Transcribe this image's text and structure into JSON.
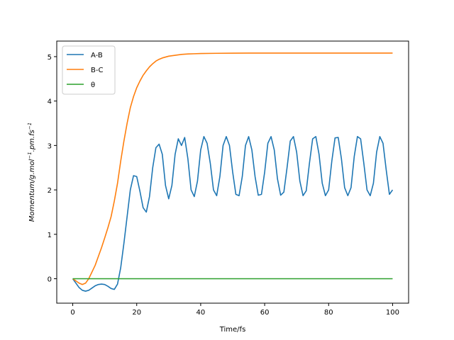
{
  "chart_data": {
    "type": "line",
    "xlabel": "Time/fs",
    "ylabel_parts": [
      "Momentum/g.mol",
      "−1",
      ".pm.fs",
      "−1"
    ],
    "xlim": [
      -5,
      105
    ],
    "ylim": [
      -0.55,
      5.35
    ],
    "xticks": [
      0,
      20,
      40,
      60,
      80,
      100
    ],
    "yticks": [
      0,
      1,
      2,
      3,
      4,
      5
    ],
    "grid": false,
    "legend_position": "upper-left",
    "series": [
      {
        "name": "A-B",
        "color": "#1f77b4",
        "x": [
          0,
          1,
          2,
          3,
          4,
          5,
          6,
          7,
          8,
          9,
          10,
          11,
          12,
          13,
          14,
          15,
          16,
          17,
          18,
          19,
          20,
          21,
          22,
          23,
          24,
          25,
          26,
          27,
          28,
          29,
          30,
          31,
          32,
          33,
          34,
          35,
          36,
          37,
          38,
          39,
          40,
          41,
          42,
          43,
          44,
          45,
          46,
          47,
          48,
          49,
          50,
          51,
          52,
          53,
          54,
          55,
          56,
          57,
          58,
          59,
          60,
          61,
          62,
          63,
          64,
          65,
          66,
          67,
          68,
          69,
          70,
          71,
          72,
          73,
          74,
          75,
          76,
          77,
          78,
          79,
          80,
          81,
          82,
          83,
          84,
          85,
          86,
          87,
          88,
          89,
          90,
          91,
          92,
          93,
          94,
          95,
          96,
          97,
          98,
          99,
          100
        ],
        "y": [
          0,
          -0.1,
          -0.2,
          -0.26,
          -0.28,
          -0.26,
          -0.21,
          -0.16,
          -0.13,
          -0.12,
          -0.13,
          -0.17,
          -0.22,
          -0.24,
          -0.12,
          0.25,
          0.8,
          1.4,
          2.0,
          2.32,
          2.3,
          1.97,
          1.6,
          1.5,
          1.85,
          2.5,
          2.95,
          3.03,
          2.8,
          2.1,
          1.8,
          2.1,
          2.8,
          3.15,
          3.0,
          3.18,
          2.7,
          2.0,
          1.85,
          2.2,
          2.9,
          3.2,
          3.05,
          2.6,
          2.0,
          1.87,
          2.3,
          3.0,
          3.2,
          3.0,
          2.4,
          1.9,
          1.87,
          2.3,
          3.0,
          3.2,
          2.9,
          2.3,
          1.88,
          1.9,
          2.4,
          3.05,
          3.2,
          2.9,
          2.25,
          1.88,
          1.95,
          2.5,
          3.1,
          3.2,
          2.85,
          2.2,
          1.87,
          1.98,
          2.6,
          3.15,
          3.2,
          2.8,
          2.15,
          1.87,
          2.0,
          2.65,
          3.17,
          3.18,
          2.7,
          2.05,
          1.87,
          2.05,
          2.75,
          3.2,
          3.15,
          2.6,
          2.0,
          1.87,
          2.15,
          2.85,
          3.2,
          3.05,
          2.45,
          1.9,
          2.0
        ],
        "tag": "blue"
      },
      {
        "name": "B-C",
        "color": "#ff7f0e",
        "x": [
          0,
          1,
          2,
          3,
          4,
          5,
          6,
          7,
          8,
          9,
          10,
          11,
          12,
          13,
          14,
          15,
          16,
          17,
          18,
          19,
          20,
          21,
          22,
          23,
          24,
          25,
          26,
          27,
          28,
          29,
          30,
          32,
          34,
          36,
          38,
          40,
          45,
          50,
          55,
          60,
          70,
          80,
          90,
          100
        ],
        "y": [
          0,
          -0.05,
          -0.1,
          -0.13,
          -0.1,
          0.0,
          0.15,
          0.3,
          0.5,
          0.7,
          0.92,
          1.15,
          1.4,
          1.75,
          2.15,
          2.65,
          3.1,
          3.5,
          3.85,
          4.1,
          4.3,
          4.45,
          4.58,
          4.68,
          4.77,
          4.84,
          4.9,
          4.94,
          4.97,
          4.99,
          5.01,
          5.03,
          5.05,
          5.06,
          5.065,
          5.07,
          5.075,
          5.078,
          5.08,
          5.08,
          5.08,
          5.08,
          5.08,
          5.08
        ]
      },
      {
        "name": "θ",
        "color": "#2ca02c",
        "x": [
          0,
          100
        ],
        "y": [
          0,
          0
        ]
      }
    ]
  }
}
